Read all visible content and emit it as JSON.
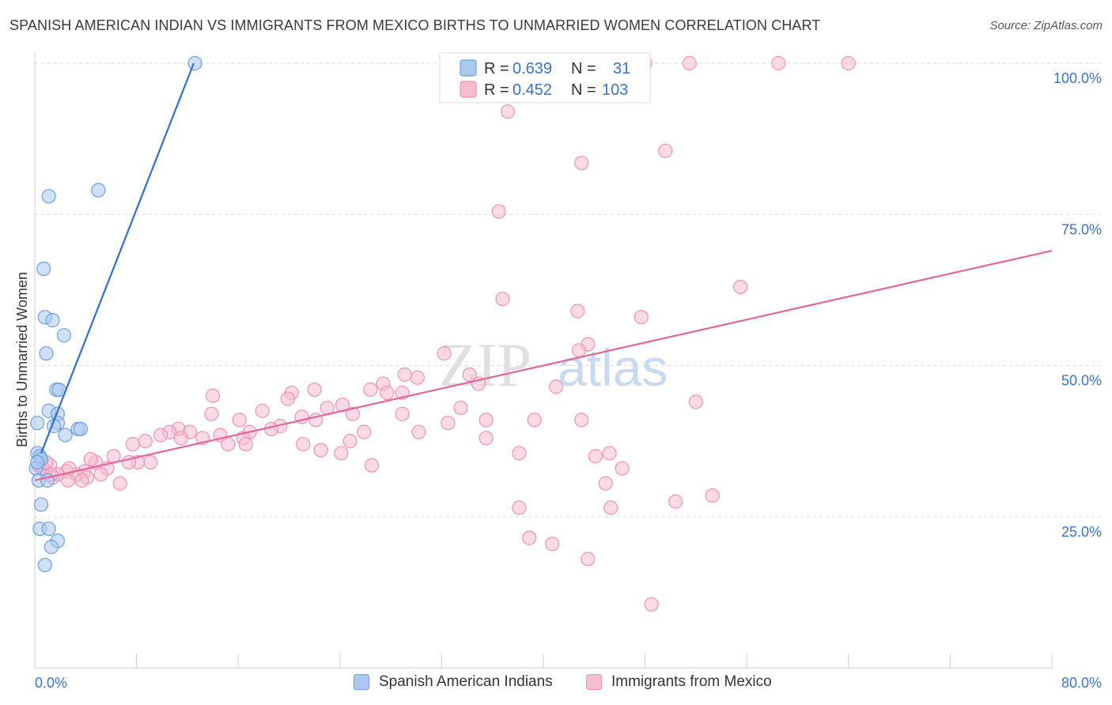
{
  "title": "SPANISH AMERICAN INDIAN VS IMMIGRANTS FROM MEXICO BIRTHS TO UNMARRIED WOMEN CORRELATION CHART",
  "source": "Source: ZipAtlas.com",
  "watermark": {
    "zip": "ZIP",
    "atlas": "atlas"
  },
  "colors": {
    "blue_fill": "#aac8f0",
    "blue_stroke": "#6f9fde",
    "blue_line": "#2f6fcf",
    "pink_fill": "#f6bcd0",
    "pink_stroke": "#ee94b4",
    "pink_line": "#e2669a",
    "tick_blue": "#3b74c4",
    "grid": "#d8d8d8"
  },
  "chart_data": {
    "type": "scatter",
    "ylabel": "Births to Unmarried Women",
    "xlim": [
      0,
      80
    ],
    "ylim": [
      0,
      100
    ],
    "x_ticks": [
      "0.0%",
      "80.0%"
    ],
    "y_ticks": [
      {
        "value": 25,
        "label": "25.0%"
      },
      {
        "value": 50,
        "label": "50.0%"
      },
      {
        "value": 75,
        "label": "75.0%"
      },
      {
        "value": 100,
        "label": "100.0%"
      }
    ],
    "grid": "horizontal dashed",
    "legend_position": "top-center",
    "stats": [
      {
        "r_label": "R =",
        "r": "0.639",
        "n_label": "N =",
        "n": "31"
      },
      {
        "r_label": "R =",
        "r": "0.452",
        "n_label": "N =",
        "n": "103"
      }
    ],
    "series": [
      {
        "name": "Spanish American Indians",
        "color": "blue",
        "trend": [
          [
            0.5,
            35.5
          ],
          [
            12.5,
            100
          ]
        ],
        "points": [
          [
            12.6,
            100
          ],
          [
            5.0,
            79
          ],
          [
            1.1,
            78
          ],
          [
            0.7,
            66
          ],
          [
            0.8,
            58
          ],
          [
            1.4,
            57.5
          ],
          [
            2.3,
            55
          ],
          [
            0.9,
            52
          ],
          [
            1.7,
            46
          ],
          [
            1.9,
            46
          ],
          [
            1.1,
            42.5
          ],
          [
            1.8,
            42
          ],
          [
            1.8,
            40.5
          ],
          [
            1.5,
            40
          ],
          [
            3.4,
            39.5
          ],
          [
            3.6,
            39.5
          ],
          [
            0.2,
            40.5
          ],
          [
            2.4,
            38.5
          ],
          [
            0.2,
            35.5
          ],
          [
            0.4,
            35
          ],
          [
            0.5,
            34.5
          ],
          [
            0.1,
            33
          ],
          [
            0.3,
            31
          ],
          [
            1.0,
            31
          ],
          [
            0.5,
            27
          ],
          [
            0.4,
            23
          ],
          [
            1.1,
            23
          ],
          [
            1.8,
            21
          ],
          [
            1.3,
            20
          ],
          [
            0.8,
            17
          ],
          [
            0.2,
            34
          ]
        ]
      },
      {
        "name": "Immigrants from Mexico",
        "color": "pink",
        "trend": [
          [
            0,
            31
          ],
          [
            80,
            69
          ]
        ],
        "points": [
          [
            48,
            100
          ],
          [
            51.5,
            100
          ],
          [
            58.5,
            100
          ],
          [
            64,
            100
          ],
          [
            37.2,
            92
          ],
          [
            49.6,
            85.5
          ],
          [
            43,
            83.5
          ],
          [
            36.5,
            75.5
          ],
          [
            55.5,
            63
          ],
          [
            36.8,
            61
          ],
          [
            42.7,
            59
          ],
          [
            47.7,
            58
          ],
          [
            43.5,
            53.5
          ],
          [
            42.8,
            52.5
          ],
          [
            32.2,
            52
          ],
          [
            52.0,
            44
          ],
          [
            41.0,
            46.5
          ],
          [
            34.2,
            48.5
          ],
          [
            30.1,
            48
          ],
          [
            27.4,
            47
          ],
          [
            29.1,
            48.5
          ],
          [
            26.4,
            46
          ],
          [
            27.7,
            45.5
          ],
          [
            28.9,
            45.5
          ],
          [
            22.0,
            46
          ],
          [
            20.2,
            45.5
          ],
          [
            19.9,
            44.5
          ],
          [
            14.0,
            45
          ],
          [
            24.2,
            43.5
          ],
          [
            23.0,
            43
          ],
          [
            22.1,
            41
          ],
          [
            17.9,
            42.5
          ],
          [
            16.1,
            41
          ],
          [
            21.0,
            41.5
          ],
          [
            13.9,
            42
          ],
          [
            19.3,
            40
          ],
          [
            18.6,
            39.5
          ],
          [
            16.9,
            39
          ],
          [
            11.3,
            39.5
          ],
          [
            10.6,
            39
          ],
          [
            12.2,
            39
          ],
          [
            9.9,
            38.5
          ],
          [
            7.7,
            37
          ],
          [
            8.7,
            37.5
          ],
          [
            11.5,
            38
          ],
          [
            14.6,
            38.5
          ],
          [
            13.2,
            38
          ],
          [
            16.4,
            38
          ],
          [
            15.2,
            37
          ],
          [
            16.6,
            37
          ],
          [
            22.5,
            36
          ],
          [
            33.5,
            43
          ],
          [
            35.5,
            41
          ],
          [
            32.5,
            40.5
          ],
          [
            28.9,
            42
          ],
          [
            25.0,
            42
          ],
          [
            25.9,
            39
          ],
          [
            24.8,
            37.5
          ],
          [
            30.2,
            39
          ],
          [
            26.5,
            33.5
          ],
          [
            24.1,
            35.5
          ],
          [
            35.5,
            38
          ],
          [
            38.1,
            35.5
          ],
          [
            43.0,
            41
          ],
          [
            45.2,
            35.5
          ],
          [
            46.2,
            33
          ],
          [
            44.1,
            35
          ],
          [
            44.9,
            30.5
          ],
          [
            38.1,
            26.5
          ],
          [
            45.3,
            26.5
          ],
          [
            50.4,
            27.5
          ],
          [
            53.3,
            28.5
          ],
          [
            38.9,
            21.5
          ],
          [
            40.7,
            20.5
          ],
          [
            43.5,
            18
          ],
          [
            48.5,
            10.5
          ],
          [
            39.3,
            41
          ],
          [
            34.9,
            47
          ],
          [
            21.1,
            37
          ],
          [
            6.2,
            35
          ],
          [
            5.7,
            33
          ],
          [
            4.8,
            34
          ],
          [
            9.1,
            34
          ],
          [
            8.1,
            34
          ],
          [
            6.7,
            30.5
          ],
          [
            4.4,
            34.5
          ],
          [
            5.2,
            32
          ],
          [
            3.3,
            32
          ],
          [
            2.5,
            32.5
          ],
          [
            3.9,
            32.5
          ],
          [
            4.1,
            31.5
          ],
          [
            3.7,
            31
          ],
          [
            2.6,
            31
          ],
          [
            1.8,
            32
          ],
          [
            1.2,
            33.5
          ],
          [
            1.4,
            31.5
          ],
          [
            0.8,
            32.5
          ],
          [
            0.6,
            33
          ],
          [
            0.3,
            33.5
          ],
          [
            0.9,
            34
          ],
          [
            2.7,
            33
          ],
          [
            7.4,
            34
          ],
          [
            1.3,
            32
          ]
        ]
      }
    ]
  }
}
